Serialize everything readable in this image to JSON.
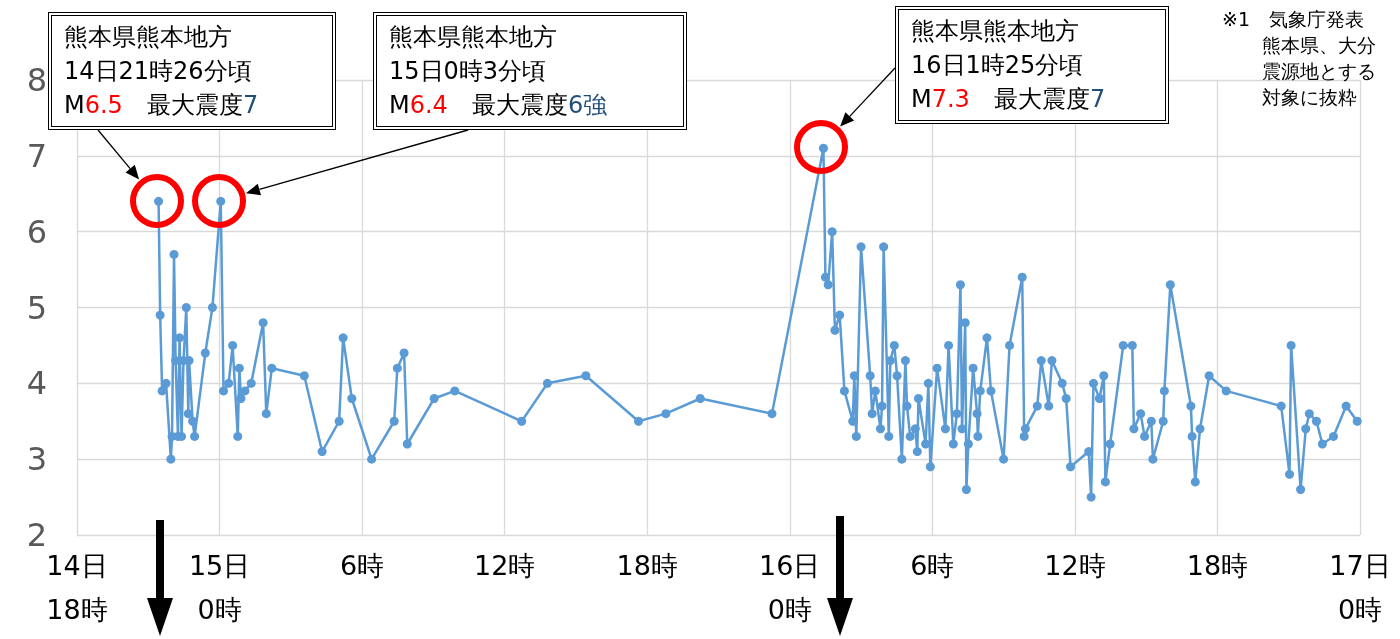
{
  "chart_data": {
    "type": "line",
    "color": "#5b9bd5",
    "marker": "circle",
    "grid": true,
    "xlim": [
      "--04-14T18:00",
      "--04-17T00:00"
    ],
    "xticks": [
      {
        "value": "--04-14T18:00",
        "label": "14日\n18時"
      },
      {
        "value": "--04-15T00:00",
        "label": "15日\n0時"
      },
      {
        "value": "--04-15T06:00",
        "label": "6時"
      },
      {
        "value": "--04-15T12:00",
        "label": "12時"
      },
      {
        "value": "--04-15T18:00",
        "label": "18時"
      },
      {
        "value": "--04-16T00:00",
        "label": "16日\n0時"
      },
      {
        "value": "--04-16T06:00",
        "label": "6時"
      },
      {
        "value": "--04-16T12:00",
        "label": "12時"
      },
      {
        "value": "--04-16T18:00",
        "label": "18時"
      },
      {
        "value": "--04-17T00:00",
        "label": "17日\n0時"
      }
    ],
    "ylim": [
      2,
      8
    ],
    "yticks": [
      2,
      3,
      4,
      5,
      6,
      7,
      8
    ],
    "x": [
      "--04-14T21:26",
      "--04-14T21:30",
      "--04-14T21:35",
      "--04-14T21:45",
      "--04-14T21:57",
      "--04-14T22:00",
      "--04-14T22:05",
      "--04-14T22:09",
      "--04-14T22:15",
      "--04-14T22:19",
      "--04-14T22:24",
      "--04-14T22:29",
      "--04-14T22:36",
      "--04-14T22:41",
      "--04-14T22:43",
      "--04-14T22:52",
      "--04-14T22:57",
      "--04-14T23:24",
      "--04-14T23:42",
      "--04-15T00:03",
      "--04-15T00:10",
      "--04-15T00:23",
      "--04-15T00:33",
      "--04-15T00:46",
      "--04-15T00:50",
      "--04-15T00:54",
      "--04-15T01:04",
      "--04-15T01:20",
      "--04-15T01:50",
      "--04-15T01:58",
      "--04-15T02:12",
      "--04-15T03:34",
      "--04-15T04:19",
      "--04-15T05:02",
      "--04-15T05:12",
      "--04-15T05:34",
      "--04-15T06:24",
      "--04-15T07:21",
      "--04-15T07:29",
      "--04-15T07:46",
      "--04-15T07:54",
      "--04-15T09:02",
      "--04-15T09:54",
      "--04-15T12:43",
      "--04-15T13:48",
      "--04-15T15:25",
      "--04-15T17:38",
      "--04-15T18:47",
      "--04-15T20:14",
      "--04-15T23:15",
      "--04-16T01:25",
      "--04-16T01:30",
      "--04-16T01:37",
      "--04-16T01:47",
      "--04-16T01:54",
      "--04-16T02:06",
      "--04-16T02:18",
      "--04-16T02:39",
      "--04-16T02:43",
      "--04-16T02:48",
      "--04-16T03:00",
      "--04-16T03:23",
      "--04-16T03:28",
      "--04-16T03:36",
      "--04-16T03:49",
      "--04-16T03:53",
      "--04-16T03:57",
      "--04-16T04:10",
      "--04-16T04:14",
      "--04-16T04:24",
      "--04-16T04:31",
      "--04-16T04:43",
      "--04-16T04:52",
      "--04-16T04:56",
      "--04-16T05:04",
      "--04-16T05:17",
      "--04-16T05:22",
      "--04-16T05:25",
      "--04-16T05:43",
      "--04-16T05:50",
      "--04-16T05:55",
      "--04-16T06:12",
      "--04-16T06:33",
      "--04-16T06:41",
      "--04-16T06:53",
      "--04-16T07:02",
      "--04-16T07:11",
      "--04-16T07:15",
      "--04-16T07:23",
      "--04-16T07:26",
      "--04-16T07:31",
      "--04-16T07:43",
      "--04-16T07:53",
      "--04-16T07:55",
      "--04-16T08:01",
      "--04-16T08:18",
      "--04-16T08:28",
      "--04-16T09:00",
      "--04-16T09:15",
      "--04-16T09:47",
      "--04-16T09:52",
      "--04-16T09:55",
      "--04-16T10:25",
      "--04-16T10:35",
      "--04-16T10:54",
      "--04-16T11:02",
      "--04-16T11:28",
      "--04-16T11:38",
      "--04-16T11:49",
      "--04-16T12:35",
      "--04-16T12:41",
      "--04-16T12:47",
      "--04-16T13:02",
      "--04-16T13:13",
      "--04-16T13:17",
      "--04-16T13:29",
      "--04-16T14:02",
      "--04-16T14:25",
      "--04-16T14:29",
      "--04-16T14:46",
      "--04-16T14:56",
      "--04-16T15:13",
      "--04-16T15:17",
      "--04-16T15:43",
      "--04-16T15:46",
      "--04-16T16:01",
      "--04-16T16:53",
      "--04-16T16:56",
      "--04-16T17:04",
      "--04-16T17:16",
      "--04-16T17:39",
      "--04-16T18:22",
      "--04-16T20:41",
      "--04-16T21:02",
      "--04-16T21:06",
      "--04-16T21:30",
      "--04-16T21:43",
      "--04-16T21:52",
      "--04-16T22:10",
      "--04-16T22:25",
      "--04-16T22:53",
      "--04-16T23:25",
      "--04-16T23:53"
    ],
    "values": [
      6.4,
      4.9,
      3.9,
      4.0,
      3.0,
      3.3,
      5.7,
      4.3,
      3.3,
      4.6,
      3.3,
      4.3,
      5.0,
      3.6,
      4.3,
      3.5,
      3.3,
      4.4,
      5.0,
      6.4,
      3.9,
      4.0,
      4.5,
      3.3,
      4.2,
      3.8,
      3.9,
      4.0,
      4.8,
      3.6,
      4.2,
      4.1,
      3.1,
      3.5,
      4.6,
      3.8,
      3.0,
      3.5,
      4.2,
      4.4,
      3.2,
      3.8,
      3.9,
      3.5,
      4.0,
      4.1,
      3.5,
      3.6,
      3.8,
      3.6,
      7.1,
      5.4,
      5.3,
      6.0,
      4.7,
      4.9,
      3.9,
      3.5,
      4.1,
      3.3,
      5.8,
      4.1,
      3.6,
      3.9,
      3.4,
      3.7,
      5.8,
      3.3,
      4.3,
      4.5,
      4.1,
      3.0,
      4.3,
      3.7,
      3.3,
      3.4,
      3.1,
      3.8,
      3.2,
      4.0,
      2.9,
      4.2,
      3.4,
      4.5,
      3.2,
      3.6,
      5.3,
      3.4,
      4.8,
      2.6,
      3.2,
      4.2,
      3.6,
      3.3,
      3.9,
      4.6,
      3.9,
      3.0,
      4.5,
      5.4,
      3.3,
      3.4,
      3.7,
      4.3,
      3.7,
      4.3,
      4.0,
      3.8,
      2.9,
      3.1,
      2.5,
      4.0,
      3.8,
      4.1,
      2.7,
      3.2,
      4.5,
      4.5,
      3.4,
      3.6,
      3.3,
      3.5,
      3.0,
      3.5,
      3.9,
      5.3,
      3.7,
      3.3,
      2.7,
      3.4,
      4.1,
      3.9,
      3.7,
      2.8,
      4.5,
      2.6,
      3.4,
      3.6,
      3.5,
      3.2,
      3.3,
      3.7,
      3.5
    ],
    "annotations": [
      "熊本県熊本地方\n14日21時26分頃\nM6.5　最大震度7",
      "熊本県熊本地方\n15日0時3分頃\nM6.4　最大震度6強",
      "熊本県熊本地方\n16日1時25分頃\nM7.3　最大震度7",
      "※1　気象庁発表熊本県、大分震源地とする対象に抜粋"
    ]
  }
}
